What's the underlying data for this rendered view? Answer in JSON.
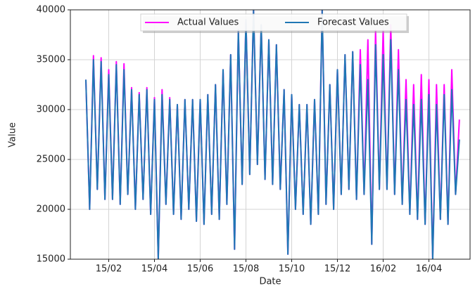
{
  "chart_data": {
    "type": "line",
    "x_label": "Date",
    "y_label": "Value",
    "categories": [
      null,
      null,
      null,
      null,
      null,
      null,
      "15/02",
      null,
      null,
      null,
      null,
      null,
      null,
      null,
      null,
      null,
      null,
      null,
      "15/04",
      null,
      null,
      null,
      null,
      null,
      null,
      null,
      null,
      null,
      null,
      null,
      "15/06",
      null,
      null,
      null,
      null,
      null,
      null,
      null,
      null,
      null,
      null,
      null,
      "15/08",
      null,
      null,
      null,
      null,
      null,
      null,
      null,
      null,
      null,
      null,
      null,
      "15/10",
      null,
      null,
      null,
      null,
      null,
      null,
      null,
      null,
      null,
      null,
      null,
      "15/12",
      null,
      null,
      null,
      null,
      null,
      null,
      null,
      null,
      null,
      null,
      null,
      "16/02",
      null,
      null,
      null,
      null,
      null,
      null,
      null,
      null,
      null,
      null,
      null,
      "16/04",
      null,
      null,
      null,
      null,
      null,
      null,
      null,
      null
    ],
    "series": [
      {
        "name": "Actual Values",
        "color": "#ff00ff",
        "values": [
          33000,
          20000,
          35400,
          22000,
          35200,
          21000,
          34000,
          21000,
          34800,
          20500,
          34600,
          21500,
          32200,
          20000,
          31700,
          21000,
          32200,
          19500,
          31200,
          15000,
          32000,
          20500,
          31200,
          19500,
          30500,
          19000,
          31000,
          20000,
          31000,
          18800,
          31000,
          18500,
          31500,
          19500,
          32500,
          19000,
          34000,
          20500,
          35500,
          16000,
          38000,
          22500,
          39000,
          23500,
          40000,
          24500,
          38500,
          23000,
          37000,
          22500,
          36500,
          22000,
          32000,
          15500,
          31500,
          20000,
          30500,
          19500,
          30500,
          18500,
          31000,
          19500,
          40000,
          20500,
          32500,
          20000,
          34000,
          21500,
          35500,
          22000,
          35800,
          21000,
          36000,
          21500,
          37000,
          16500,
          38000,
          22000,
          38000,
          22000,
          38500,
          21500,
          36000,
          20500,
          33000,
          19500,
          32500,
          19000,
          33500,
          18500,
          33000,
          15000,
          32500,
          19000,
          32500,
          18500,
          34000,
          21500,
          29000
        ]
      },
      {
        "name": "Forecast Values",
        "color": "#1f77b4",
        "values": [
          33000,
          20000,
          35000,
          22000,
          34800,
          21000,
          33500,
          21000,
          34500,
          20500,
          34000,
          21500,
          32000,
          20000,
          31500,
          21000,
          32000,
          19500,
          31000,
          15000,
          31500,
          20500,
          31000,
          19500,
          30500,
          19000,
          31000,
          20000,
          31000,
          18800,
          31000,
          18500,
          31500,
          19500,
          32500,
          19000,
          34000,
          20500,
          35500,
          16000,
          38000,
          22500,
          39000,
          23500,
          40000,
          24500,
          38500,
          23000,
          37000,
          22500,
          36500,
          22000,
          32000,
          15500,
          31500,
          20000,
          30500,
          19500,
          30500,
          18500,
          31000,
          19500,
          40000,
          20500,
          32500,
          20000,
          34000,
          21500,
          35500,
          22000,
          35800,
          21000,
          34500,
          21500,
          33000,
          16500,
          36500,
          22000,
          35500,
          22000,
          37000,
          21500,
          34000,
          20500,
          31000,
          19500,
          30500,
          19000,
          31000,
          18500,
          31500,
          15000,
          30500,
          19000,
          31500,
          18500,
          32000,
          21500,
          27000
        ]
      }
    ],
    "ylim": [
      15000,
      40000
    ],
    "yticks": [
      15000,
      20000,
      25000,
      30000,
      35000,
      40000
    ],
    "grid": true,
    "legend": "upper center"
  }
}
